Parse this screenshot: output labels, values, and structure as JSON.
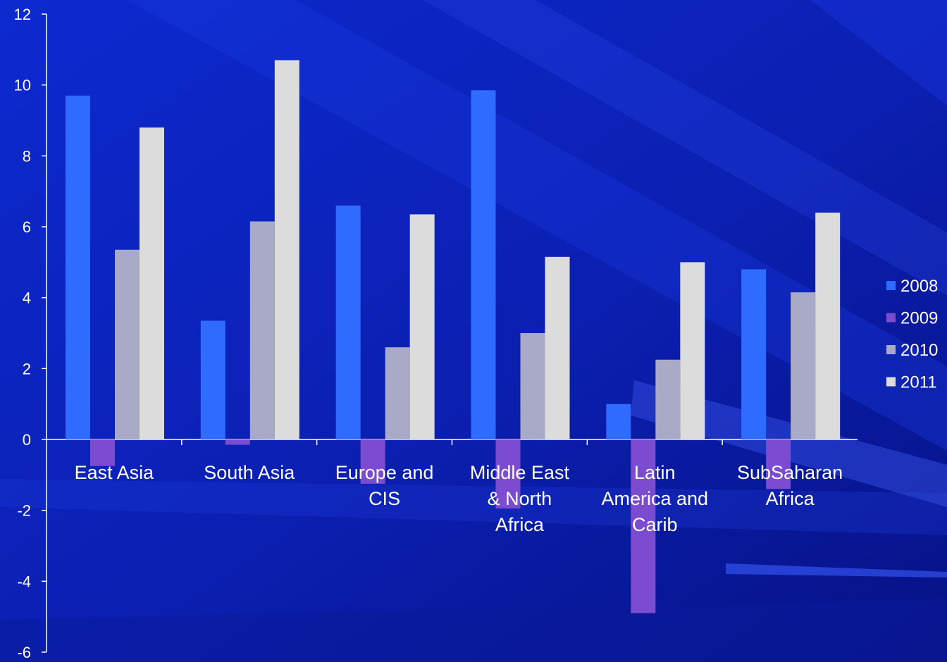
{
  "chart_data": {
    "type": "bar",
    "title": "",
    "xlabel": "",
    "ylabel": "",
    "ylim": [
      -6,
      12
    ],
    "yticks": [
      -6,
      -4,
      -2,
      0,
      2,
      4,
      6,
      8,
      10,
      12
    ],
    "legend_position": "right",
    "grid": false,
    "categories": [
      [
        "East Asia"
      ],
      [
        "South Asia"
      ],
      [
        "Europe and",
        "CIS"
      ],
      [
        "Middle East",
        "& North",
        "Africa"
      ],
      [
        "Latin",
        "America and",
        "Carib"
      ],
      [
        "SubSaharan",
        "Africa"
      ]
    ],
    "series": [
      {
        "name": "2008",
        "color": "#2f6bff",
        "values": [
          9.7,
          3.35,
          6.6,
          9.85,
          1.0,
          4.8
        ]
      },
      {
        "name": "2009",
        "color": "#7b4bd0",
        "values": [
          -0.75,
          -0.15,
          -1.25,
          -1.95,
          -4.9,
          -1.4
        ]
      },
      {
        "name": "2010",
        "color": "#a9a9c8",
        "values": [
          5.35,
          6.15,
          2.6,
          3.0,
          2.25,
          4.15
        ]
      },
      {
        "name": "2011",
        "color": "#dcdcdc",
        "values": [
          8.8,
          10.7,
          6.35,
          5.15,
          5.0,
          6.4
        ]
      }
    ]
  }
}
